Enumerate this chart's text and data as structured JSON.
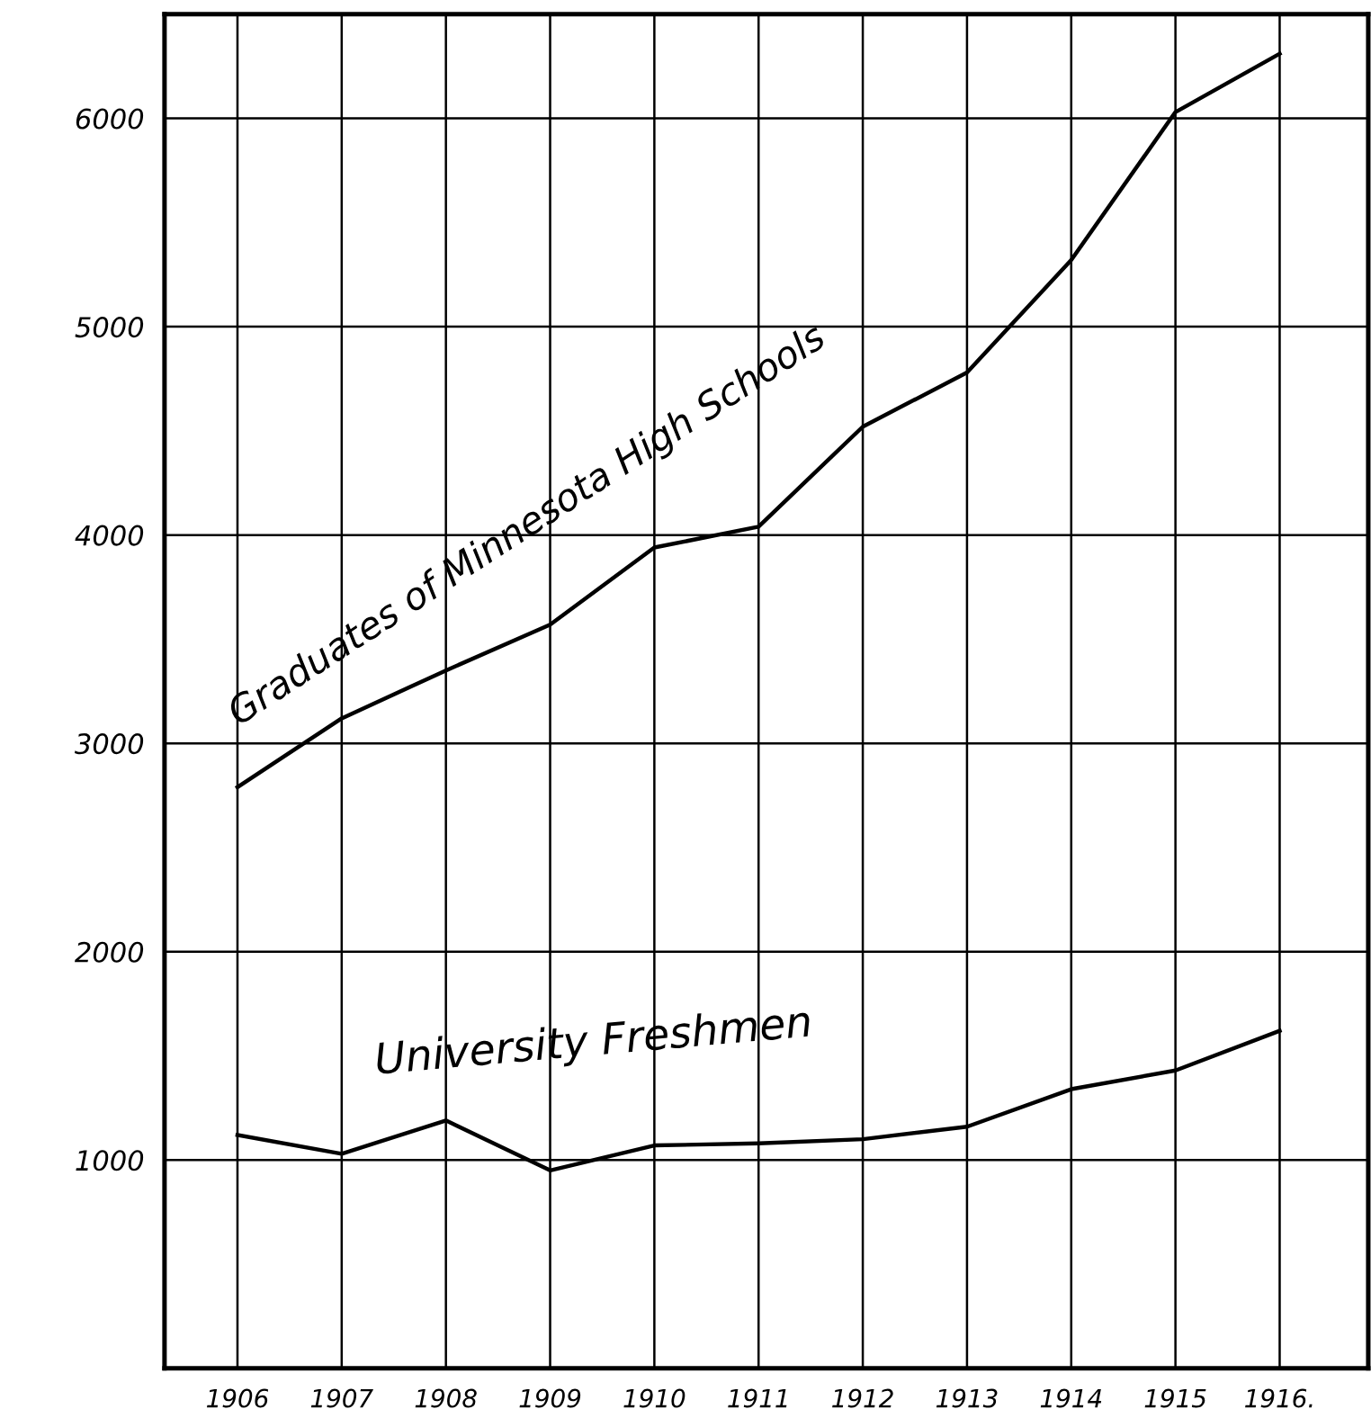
{
  "chart_data": {
    "type": "line",
    "x": [
      1906,
      1907,
      1908,
      1909,
      1910,
      1911,
      1912,
      1913,
      1914,
      1915,
      1916
    ],
    "series": [
      {
        "name": "Graduates of Minnesota High Schools",
        "color": "#000000",
        "values": [
          2790,
          3120,
          3350,
          3570,
          3940,
          4040,
          4520,
          4780,
          5320,
          6030,
          6310
        ]
      },
      {
        "name": "University Freshmen",
        "color": "#000000",
        "values": [
          1120,
          1030,
          1190,
          950,
          1070,
          1080,
          1100,
          1160,
          1340,
          1430,
          1620
        ]
      }
    ],
    "xlim": [
      1905.3,
      1916.85
    ],
    "ylim": [
      0,
      6500
    ],
    "xticks": [
      1906,
      1907,
      1908,
      1909,
      1910,
      1911,
      1912,
      1913,
      1914,
      1915,
      {
        "value": 1916,
        "label": "1916."
      }
    ],
    "yticks": [
      1000,
      2000,
      3000,
      4000,
      5000,
      6000
    ],
    "grid": true,
    "legend": false,
    "marker": "none",
    "line_style": "solid"
  }
}
